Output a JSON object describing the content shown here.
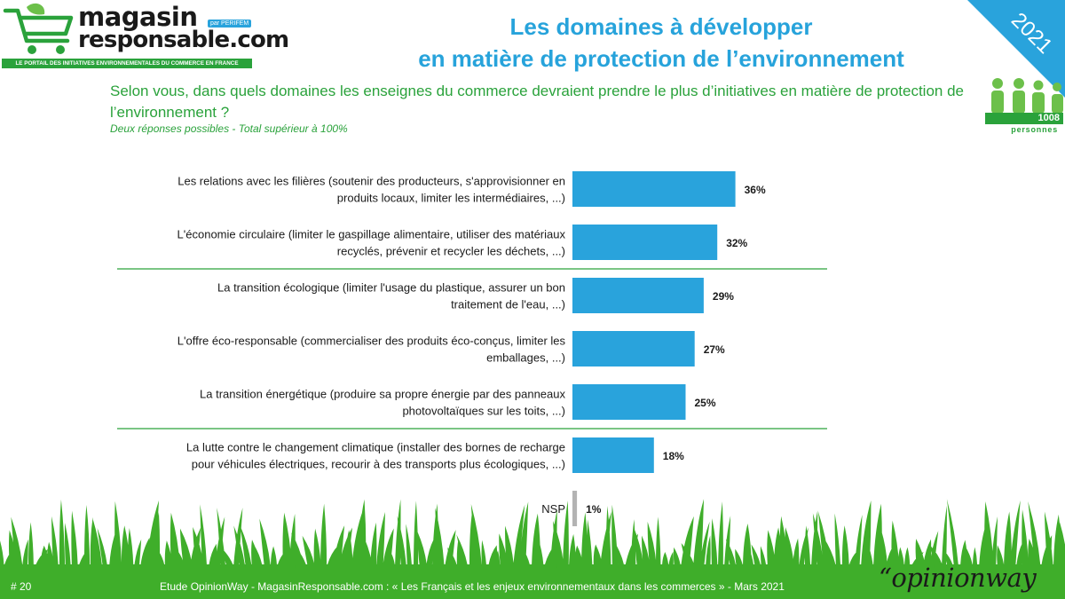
{
  "header": {
    "brand_line1": "magasin",
    "brand_line2": "responsable.com",
    "partner": "par PERIFEM",
    "tagline": "LE PORTAIL DES INITIATIVES ENVIRONNEMENTALES DU COMMERCE EN FRANCE",
    "title_line1": "Les domaines à développer",
    "title_line2": "en matière de protection de l’environnement",
    "year": "2021"
  },
  "question": {
    "text": "Selon vous, dans quels domaines les enseignes du commerce devraient prendre le plus d’initiatives en matière de protection de l’environnement ?",
    "note": "Deux réponses possibles - Total supérieur à 100%"
  },
  "sample": {
    "count": "1008",
    "label": "personnes"
  },
  "chart_data": {
    "type": "bar",
    "orientation": "horizontal",
    "title": "Les domaines à développer en matière de protection de l’environnement",
    "unit": "%",
    "xlim": [
      0,
      100
    ],
    "categories": [
      [
        "Les relations avec les filières (soutenir des producteurs, s'approvisionner en",
        "produits locaux, limiter les intermédiaires, ...)"
      ],
      [
        "L'économie circulaire (limiter le gaspillage alimentaire, utiliser des matériaux",
        "recyclés, prévenir et recycler les déchets, ...)"
      ],
      [
        "La transition écologique (limiter l'usage du plastique, assurer un bon",
        "traitement de l'eau, ...)"
      ],
      [
        "L'offre éco-responsable (commercialiser des produits éco-conçus, limiter les",
        "emballages, ...)"
      ],
      [
        "La transition énergétique (produire sa propre énergie par des panneaux",
        "photovoltaïques sur les toits, ...)"
      ],
      [
        "La lutte contre le changement climatique (installer des bornes de recharge",
        "pour véhicules électriques, recourir à des transports plus écologiques, ...)"
      ],
      [
        "NSP"
      ]
    ],
    "values": [
      36,
      32,
      29,
      27,
      25,
      18,
      1
    ],
    "data_labels": [
      "36%",
      "32%",
      "29%",
      "27%",
      "25%",
      "18%",
      "1%"
    ],
    "colors": {
      "bar": "#29a3dc",
      "nsp_bar": "#b3b3b3",
      "separator": "#2aa23b"
    },
    "separators_after": [
      1,
      4
    ]
  },
  "footer": {
    "page": "# 20",
    "source": "Etude OpinionWay - MagasinResponsable.com : « Les Français et les enjeux environnementaux dans les commerces » - Mars 2021",
    "brand": "“opinionway"
  },
  "colors": {
    "green": "#2aa23b",
    "blue": "#27a3db",
    "grass": "#3fae2a"
  }
}
